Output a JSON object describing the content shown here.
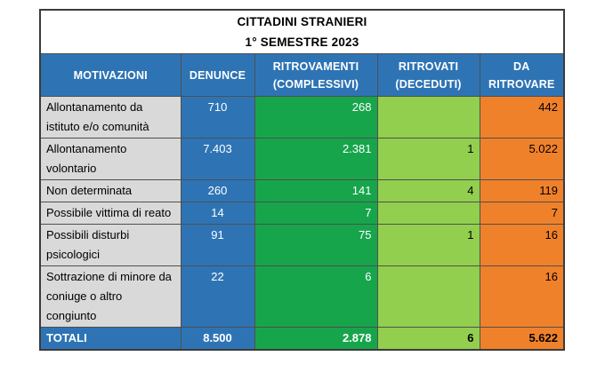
{
  "title": {
    "line1": "CITTADINI STRANIERI",
    "line2": "1° SEMESTRE 2023"
  },
  "columns": [
    {
      "label": "MOTIVAZIONI"
    },
    {
      "label": "DENUNCE"
    },
    {
      "label": "RITROVAMENTI (COMPLESSIVI)"
    },
    {
      "label": "RITROVATI (DECEDUTI)"
    },
    {
      "label": "DA RITROVARE"
    }
  ],
  "rows": [
    {
      "motivazione": "Allontanamento da istituto e/o comunità",
      "denunce": "710",
      "ritrovamenti": "268",
      "ritrovati": "",
      "da_ritrovare": "442"
    },
    {
      "motivazione": "Allontanamento volontario",
      "denunce": "7.403",
      "ritrovamenti": "2.381",
      "ritrovati": "1",
      "da_ritrovare": "5.022"
    },
    {
      "motivazione": "Non determinata",
      "denunce": "260",
      "ritrovamenti": "141",
      "ritrovati": "4",
      "da_ritrovare": "119"
    },
    {
      "motivazione": "Possibile vittima di reato",
      "denunce": "14",
      "ritrovamenti": "7",
      "ritrovati": "",
      "da_ritrovare": "7"
    },
    {
      "motivazione": "Possibili disturbi psicologici",
      "denunce": "91",
      "ritrovamenti": "75",
      "ritrovati": "1",
      "da_ritrovare": "16"
    },
    {
      "motivazione": "Sottrazione di minore da coniuge o altro congiunto",
      "denunce": "22",
      "ritrovamenti": "6",
      "ritrovati": "",
      "da_ritrovare": "16"
    }
  ],
  "totals": {
    "label": "TOTALI",
    "denunce": "8.500",
    "ritrovamenti": "2.878",
    "ritrovati": "6",
    "da_ritrovare": "5.622"
  },
  "colors": {
    "header_blue": "#2E74B5",
    "green": "#17A54C",
    "light_green": "#92CF4E",
    "orange": "#F0812B",
    "gray": "#D9D9D9",
    "border": "#4F4F4F",
    "border_outer": "#3B3B3B",
    "title_text": "#000000",
    "header_text": "#FFFFFF"
  },
  "chart_data": {
    "type": "table",
    "title": "CITTADINI STRANIERI",
    "subtitle": "1° SEMESTRE 2023",
    "columns": [
      "MOTIVAZIONI",
      "DENUNCE",
      "RITROVAMENTI (COMPLESSIVI)",
      "RITROVATI (DECEDUTI)",
      "DA RITROVARE"
    ],
    "rows": [
      [
        "Allontanamento da istituto e/o comunità",
        710,
        268,
        null,
        442
      ],
      [
        "Allontanamento volontario",
        7403,
        2381,
        1,
        5022
      ],
      [
        "Non determinata",
        260,
        141,
        4,
        119
      ],
      [
        "Possibile vittima di reato",
        14,
        7,
        null,
        7
      ],
      [
        "Possibili disturbi psicologici",
        91,
        75,
        1,
        16
      ],
      [
        "Sottrazione di minore da coniuge o altro congiunto",
        22,
        6,
        null,
        16
      ]
    ],
    "totals_row": [
      "TOTALI",
      8500,
      2878,
      6,
      5622
    ],
    "number_format": "it-IT thousands separator '.'"
  }
}
